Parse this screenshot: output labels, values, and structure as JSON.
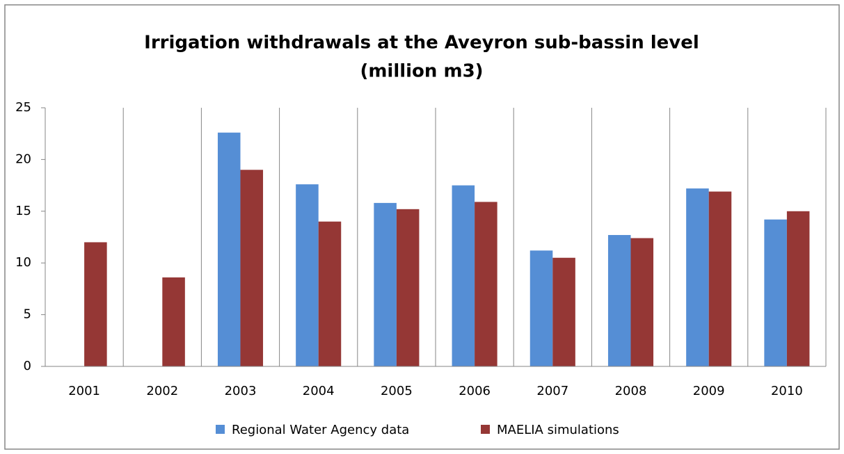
{
  "chart_data": {
    "type": "bar",
    "title": [
      "Irrigation withdrawals at the Aveyron sub-bassin level",
      "(million m3)"
    ],
    "categories": [
      "2001",
      "2002",
      "2003",
      "2004",
      "2005",
      "2006",
      "2007",
      "2008",
      "2009",
      "2010"
    ],
    "series": [
      {
        "name": "Regional Water Agency data",
        "color": "#558ed5",
        "values": [
          null,
          null,
          22.6,
          17.6,
          15.8,
          17.5,
          11.2,
          12.7,
          17.2,
          14.2
        ]
      },
      {
        "name": "MAELIA simulations",
        "color": "#953735",
        "values": [
          12.0,
          8.6,
          19.0,
          14.0,
          15.2,
          15.9,
          10.5,
          12.4,
          16.9,
          15.0
        ]
      }
    ],
    "ylim": [
      0,
      25
    ],
    "yticks": [
      0,
      5,
      10,
      15,
      20,
      25
    ],
    "category_separators": true,
    "legend": "bottom"
  }
}
